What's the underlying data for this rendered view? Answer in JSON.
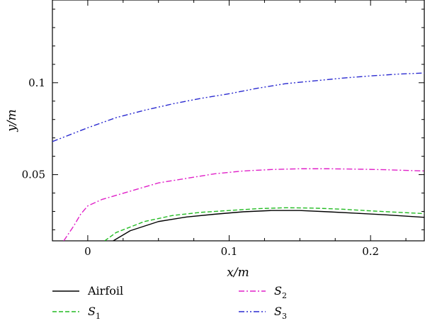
{
  "chart_data": {
    "type": "line",
    "xlabel": "x/m",
    "ylabel": "y/m",
    "xlim": [
      -0.025,
      0.238
    ],
    "ylim": [
      0.014,
      0.145
    ],
    "x_ticks": [
      {
        "value": 0,
        "label": "0"
      },
      {
        "value": 0.1,
        "label": "0.1"
      },
      {
        "value": 0.2,
        "label": "0.2"
      }
    ],
    "y_ticks": [
      {
        "value": 0.05,
        "label": "0.05"
      },
      {
        "value": 0.1,
        "label": "0.1"
      }
    ],
    "grid": false,
    "legend_position": "bottom",
    "series": [
      {
        "name": "Airfoil",
        "name_main": "Airfoil",
        "name_sub": "",
        "color": "#000000",
        "dash": "solid",
        "x": [
          0.018,
          0.03,
          0.05,
          0.07,
          0.09,
          0.11,
          0.13,
          0.15,
          0.17,
          0.19,
          0.21,
          0.238
        ],
        "y": [
          0.014,
          0.0195,
          0.0245,
          0.027,
          0.0285,
          0.0298,
          0.0305,
          0.0305,
          0.0298,
          0.029,
          0.0282,
          0.0268
        ]
      },
      {
        "name": "S1",
        "name_main": "S",
        "name_sub": "1",
        "color": "#22bb22",
        "dash": "dashed",
        "x": [
          0.012,
          0.02,
          0.04,
          0.06,
          0.08,
          0.1,
          0.12,
          0.14,
          0.16,
          0.18,
          0.2,
          0.22,
          0.238
        ],
        "y": [
          0.014,
          0.0185,
          0.0245,
          0.0278,
          0.0295,
          0.0305,
          0.0315,
          0.032,
          0.0318,
          0.0312,
          0.0303,
          0.0295,
          0.0288
        ]
      },
      {
        "name": "S2",
        "name_main": "S",
        "name_sub": "2",
        "color": "#e020c8",
        "dash": "dashdot",
        "x": [
          -0.017,
          -0.01,
          -0.005,
          0,
          0.01,
          0.03,
          0.05,
          0.07,
          0.09,
          0.11,
          0.13,
          0.15,
          0.17,
          0.19,
          0.21,
          0.238
        ],
        "y": [
          0.014,
          0.022,
          0.0285,
          0.033,
          0.0365,
          0.041,
          0.0455,
          0.048,
          0.0505,
          0.052,
          0.0528,
          0.0532,
          0.0532,
          0.053,
          0.0527,
          0.052
        ]
      },
      {
        "name": "S3",
        "name_main": "S",
        "name_sub": "3",
        "color": "#2a2ad0",
        "dash": "dashdotdot",
        "x": [
          -0.025,
          -0.01,
          0,
          0.02,
          0.04,
          0.06,
          0.08,
          0.1,
          0.12,
          0.14,
          0.16,
          0.18,
          0.2,
          0.22,
          0.238
        ],
        "y": [
          0.068,
          0.0725,
          0.0755,
          0.081,
          0.085,
          0.0885,
          0.0915,
          0.094,
          0.097,
          0.0995,
          0.101,
          0.1025,
          0.1037,
          0.1047,
          0.1053
        ]
      }
    ]
  }
}
